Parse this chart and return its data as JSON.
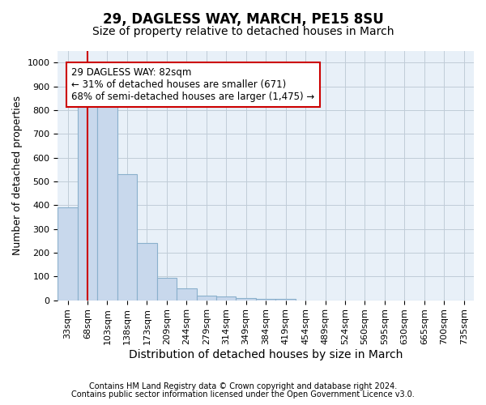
{
  "title1": "29, DAGLESS WAY, MARCH, PE15 8SU",
  "title2": "Size of property relative to detached houses in March",
  "xlabel": "Distribution of detached houses by size in March",
  "ylabel": "Number of detached properties",
  "footnote1": "Contains HM Land Registry data © Crown copyright and database right 2024.",
  "footnote2": "Contains public sector information licensed under the Open Government Licence v3.0.",
  "annotation_line1": "29 DAGLESS WAY: 82sqm",
  "annotation_line2": "← 31% of detached houses are smaller (671)",
  "annotation_line3": "68% of semi-detached houses are larger (1,475) →",
  "bar_categories": [
    "33sqm",
    "68sqm",
    "103sqm",
    "138sqm",
    "173sqm",
    "209sqm",
    "244sqm",
    "279sqm",
    "314sqm",
    "349sqm",
    "384sqm",
    "419sqm",
    "454sqm",
    "489sqm",
    "524sqm",
    "560sqm",
    "595sqm",
    "630sqm",
    "665sqm",
    "700sqm",
    "735sqm"
  ],
  "bar_values": [
    390,
    830,
    830,
    530,
    240,
    93,
    50,
    20,
    15,
    10,
    6,
    6,
    0,
    0,
    0,
    0,
    0,
    0,
    0,
    0,
    0
  ],
  "bar_color": "#c8d8ec",
  "bar_edge_color": "#8ab0cc",
  "bar_edge_width": 0.8,
  "vline_x_index": 1,
  "vline_color": "#cc0000",
  "vline_linewidth": 1.5,
  "annotation_box_edge_color": "#cc0000",
  "ylim": [
    0,
    1050
  ],
  "yticks": [
    0,
    100,
    200,
    300,
    400,
    500,
    600,
    700,
    800,
    900,
    1000
  ],
  "grid_color": "#c0ccd8",
  "plot_bg_color": "#e8f0f8",
  "title1_fontsize": 12,
  "title2_fontsize": 10,
  "xlabel_fontsize": 10,
  "ylabel_fontsize": 9,
  "tick_fontsize": 8,
  "annot_fontsize": 8.5,
  "footnote_fontsize": 7
}
